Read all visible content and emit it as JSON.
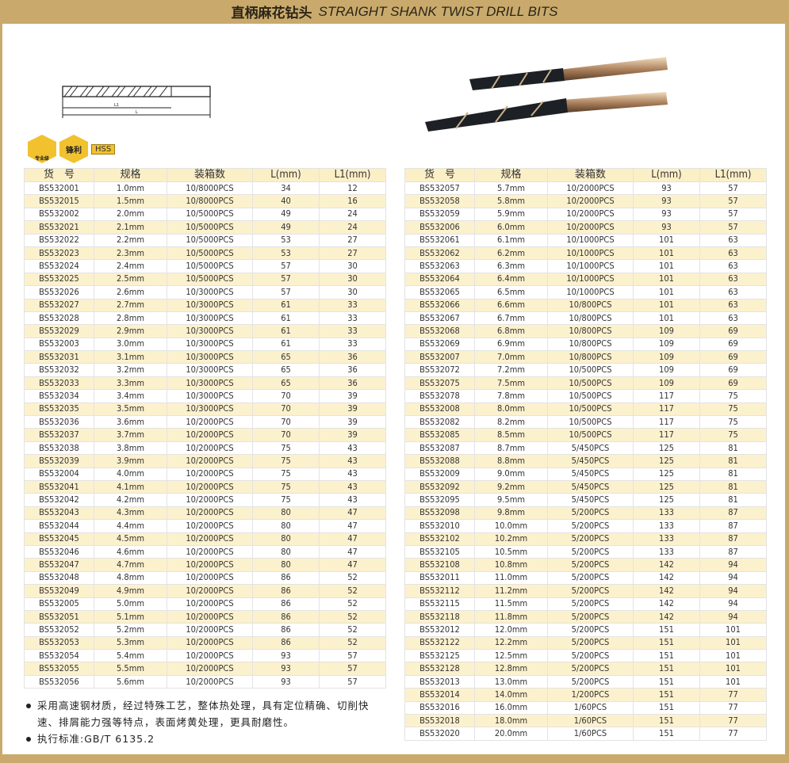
{
  "title": {
    "cn": "直柄麻花钻头",
    "en": "STRAIGHT SHANK TWIST DRILL BITS"
  },
  "diagram": {
    "l1_label": "L1",
    "l_label": "L"
  },
  "badges": {
    "pro": "专业级",
    "sharp": "锋利",
    "hss": "HSS"
  },
  "colors": {
    "gold": "#c9aa6c",
    "row_alt": "#fcf1cd",
    "badge": "#f2c12e"
  },
  "headers": [
    "货　号",
    "规格",
    "装箱数",
    "L(mm)",
    "L1(mm)"
  ],
  "left_table": [
    [
      "BS532001",
      "1.0mm",
      "10/8000PCS",
      "34",
      "12"
    ],
    [
      "BS532015",
      "1.5mm",
      "10/8000PCS",
      "40",
      "16"
    ],
    [
      "BS532002",
      "2.0mm",
      "10/5000PCS",
      "49",
      "24"
    ],
    [
      "BS532021",
      "2.1mm",
      "10/5000PCS",
      "49",
      "24"
    ],
    [
      "BS532022",
      "2.2mm",
      "10/5000PCS",
      "53",
      "27"
    ],
    [
      "BS532023",
      "2.3mm",
      "10/5000PCS",
      "53",
      "27"
    ],
    [
      "BS532024",
      "2.4mm",
      "10/5000PCS",
      "57",
      "30"
    ],
    [
      "BS532025",
      "2.5mm",
      "10/5000PCS",
      "57",
      "30"
    ],
    [
      "BS532026",
      "2.6mm",
      "10/3000PCS",
      "57",
      "30"
    ],
    [
      "BS532027",
      "2.7mm",
      "10/3000PCS",
      "61",
      "33"
    ],
    [
      "BS532028",
      "2.8mm",
      "10/3000PCS",
      "61",
      "33"
    ],
    [
      "BS532029",
      "2.9mm",
      "10/3000PCS",
      "61",
      "33"
    ],
    [
      "BS532003",
      "3.0mm",
      "10/3000PCS",
      "61",
      "33"
    ],
    [
      "BS532031",
      "3.1mm",
      "10/3000PCS",
      "65",
      "36"
    ],
    [
      "BS532032",
      "3.2mm",
      "10/3000PCS",
      "65",
      "36"
    ],
    [
      "BS532033",
      "3.3mm",
      "10/3000PCS",
      "65",
      "36"
    ],
    [
      "BS532034",
      "3.4mm",
      "10/3000PCS",
      "70",
      "39"
    ],
    [
      "BS532035",
      "3.5mm",
      "10/3000PCS",
      "70",
      "39"
    ],
    [
      "BS532036",
      "3.6mm",
      "10/2000PCS",
      "70",
      "39"
    ],
    [
      "BS532037",
      "3.7mm",
      "10/2000PCS",
      "70",
      "39"
    ],
    [
      "BS532038",
      "3.8mm",
      "10/2000PCS",
      "75",
      "43"
    ],
    [
      "BS532039",
      "3.9mm",
      "10/2000PCS",
      "75",
      "43"
    ],
    [
      "BS532004",
      "4.0mm",
      "10/2000PCS",
      "75",
      "43"
    ],
    [
      "BS532041",
      "4.1mm",
      "10/2000PCS",
      "75",
      "43"
    ],
    [
      "BS532042",
      "4.2mm",
      "10/2000PCS",
      "75",
      "43"
    ],
    [
      "BS532043",
      "4.3mm",
      "10/2000PCS",
      "80",
      "47"
    ],
    [
      "BS532044",
      "4.4mm",
      "10/2000PCS",
      "80",
      "47"
    ],
    [
      "BS532045",
      "4.5mm",
      "10/2000PCS",
      "80",
      "47"
    ],
    [
      "BS532046",
      "4.6mm",
      "10/2000PCS",
      "80",
      "47"
    ],
    [
      "BS532047",
      "4.7mm",
      "10/2000PCS",
      "80",
      "47"
    ],
    [
      "BS532048",
      "4.8mm",
      "10/2000PCS",
      "86",
      "52"
    ],
    [
      "BS532049",
      "4.9mm",
      "10/2000PCS",
      "86",
      "52"
    ],
    [
      "BS532005",
      "5.0mm",
      "10/2000PCS",
      "86",
      "52"
    ],
    [
      "BS532051",
      "5.1mm",
      "10/2000PCS",
      "86",
      "52"
    ],
    [
      "BS532052",
      "5.2mm",
      "10/2000PCS",
      "86",
      "52"
    ],
    [
      "BS532053",
      "5.3mm",
      "10/2000PCS",
      "86",
      "52"
    ],
    [
      "BS532054",
      "5.4mm",
      "10/2000PCS",
      "93",
      "57"
    ],
    [
      "BS532055",
      "5.5mm",
      "10/2000PCS",
      "93",
      "57"
    ],
    [
      "BS532056",
      "5.6mm",
      "10/2000PCS",
      "93",
      "57"
    ]
  ],
  "right_table": [
    [
      "BS532057",
      "5.7mm",
      "10/2000PCS",
      "93",
      "57"
    ],
    [
      "BS532058",
      "5.8mm",
      "10/2000PCS",
      "93",
      "57"
    ],
    [
      "BS532059",
      "5.9mm",
      "10/2000PCS",
      "93",
      "57"
    ],
    [
      "BS532006",
      "6.0mm",
      "10/2000PCS",
      "93",
      "57"
    ],
    [
      "BS532061",
      "6.1mm",
      "10/1000PCS",
      "101",
      "63"
    ],
    [
      "BS532062",
      "6.2mm",
      "10/1000PCS",
      "101",
      "63"
    ],
    [
      "BS532063",
      "6.3mm",
      "10/1000PCS",
      "101",
      "63"
    ],
    [
      "BS532064",
      "6.4mm",
      "10/1000PCS",
      "101",
      "63"
    ],
    [
      "BS532065",
      "6.5mm",
      "10/1000PCS",
      "101",
      "63"
    ],
    [
      "BS532066",
      "6.6mm",
      "10/800PCS",
      "101",
      "63"
    ],
    [
      "BS532067",
      "6.7mm",
      "10/800PCS",
      "101",
      "63"
    ],
    [
      "BS532068",
      "6.8mm",
      "10/800PCS",
      "109",
      "69"
    ],
    [
      "BS532069",
      "6.9mm",
      "10/800PCS",
      "109",
      "69"
    ],
    [
      "BS532007",
      "7.0mm",
      "10/800PCS",
      "109",
      "69"
    ],
    [
      "BS532072",
      "7.2mm",
      "10/500PCS",
      "109",
      "69"
    ],
    [
      "BS532075",
      "7.5mm",
      "10/500PCS",
      "109",
      "69"
    ],
    [
      "BS532078",
      "7.8mm",
      "10/500PCS",
      "117",
      "75"
    ],
    [
      "BS532008",
      "8.0mm",
      "10/500PCS",
      "117",
      "75"
    ],
    [
      "BS532082",
      "8.2mm",
      "10/500PCS",
      "117",
      "75"
    ],
    [
      "BS532085",
      "8.5mm",
      "10/500PCS",
      "117",
      "75"
    ],
    [
      "BS532087",
      "8.7mm",
      "5/450PCS",
      "125",
      "81"
    ],
    [
      "BS532088",
      "8.8mm",
      "5/450PCS",
      "125",
      "81"
    ],
    [
      "BS532009",
      "9.0mm",
      "5/450PCS",
      "125",
      "81"
    ],
    [
      "BS532092",
      "9.2mm",
      "5/450PCS",
      "125",
      "81"
    ],
    [
      "BS532095",
      "9.5mm",
      "5/450PCS",
      "125",
      "81"
    ],
    [
      "BS532098",
      "9.8mm",
      "5/200PCS",
      "133",
      "87"
    ],
    [
      "BS532010",
      "10.0mm",
      "5/200PCS",
      "133",
      "87"
    ],
    [
      "BS532102",
      "10.2mm",
      "5/200PCS",
      "133",
      "87"
    ],
    [
      "BS532105",
      "10.5mm",
      "5/200PCS",
      "133",
      "87"
    ],
    [
      "BS532108",
      "10.8mm",
      "5/200PCS",
      "142",
      "94"
    ],
    [
      "BS532011",
      "11.0mm",
      "5/200PCS",
      "142",
      "94"
    ],
    [
      "BS532112",
      "11.2mm",
      "5/200PCS",
      "142",
      "94"
    ],
    [
      "BS532115",
      "11.5mm",
      "5/200PCS",
      "142",
      "94"
    ],
    [
      "BS532118",
      "11.8mm",
      "5/200PCS",
      "142",
      "94"
    ],
    [
      "BS532012",
      "12.0mm",
      "5/200PCS",
      "151",
      "101"
    ],
    [
      "BS532122",
      "12.2mm",
      "5/200PCS",
      "151",
      "101"
    ],
    [
      "BS532125",
      "12.5mm",
      "5/200PCS",
      "151",
      "101"
    ],
    [
      "BS532128",
      "12.8mm",
      "5/200PCS",
      "151",
      "101"
    ],
    [
      "BS532013",
      "13.0mm",
      "5/200PCS",
      "151",
      "101"
    ],
    [
      "BS532014",
      "14.0mm",
      "1/200PCS",
      "151",
      "77"
    ],
    [
      "BS532016",
      "16.0mm",
      "1/60PCS",
      "151",
      "77"
    ],
    [
      "BS532018",
      "18.0mm",
      "1/60PCS",
      "151",
      "77"
    ],
    [
      "BS532020",
      "20.0mm",
      "1/60PCS",
      "151",
      "77"
    ]
  ],
  "notes": [
    "采用高速钢材质，经过特殊工艺，整体热处理，具有定位精确、切削快速、排屑能力强等特点，表面烤黄处理，更具耐磨性。",
    "执行标准:GB/T 6135.2"
  ]
}
